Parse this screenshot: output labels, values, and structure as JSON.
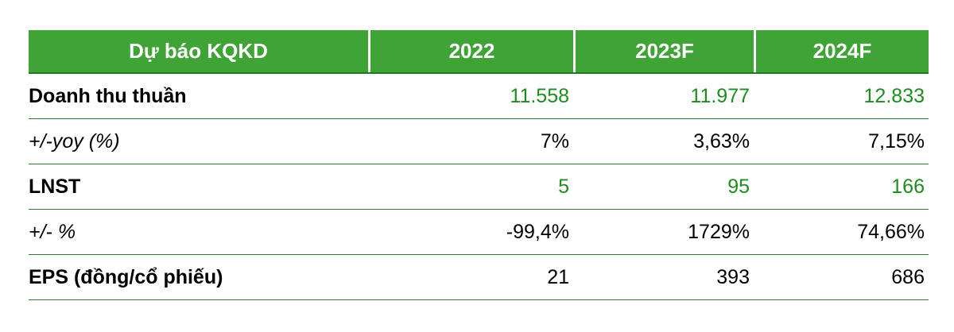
{
  "table": {
    "header": {
      "label": "Dự báo KQKD",
      "columns": [
        "2022",
        "2023F",
        "2024F"
      ]
    },
    "rows": [
      {
        "label": "Doanh thu thuần",
        "style": "bold",
        "value_color": "green",
        "values": [
          "11.558",
          "11.977",
          "12.833"
        ]
      },
      {
        "label": "+/-yoy (%)",
        "style": "italic",
        "value_color": "black",
        "values": [
          "7%",
          "3,63%",
          "7,15%"
        ]
      },
      {
        "label": "LNST",
        "style": "bold",
        "value_color": "green",
        "values": [
          "5",
          "95",
          "166"
        ]
      },
      {
        "label": "+/- %",
        "style": "italic",
        "value_color": "black",
        "values": [
          "-99,4%",
          "1729%",
          "74,66%"
        ]
      },
      {
        "label": "EPS (đồng/cổ phiếu)",
        "style": "bold",
        "value_color": "black",
        "values": [
          "21",
          "393",
          "686"
        ]
      }
    ],
    "colors": {
      "header_bg": "#3FA435",
      "header_text": "#FFFFFF",
      "header_border_bottom": "#1E7A1E",
      "row_divider": "#2E7D32",
      "value_green": "#1E8C1E",
      "text_black": "#000000"
    }
  }
}
